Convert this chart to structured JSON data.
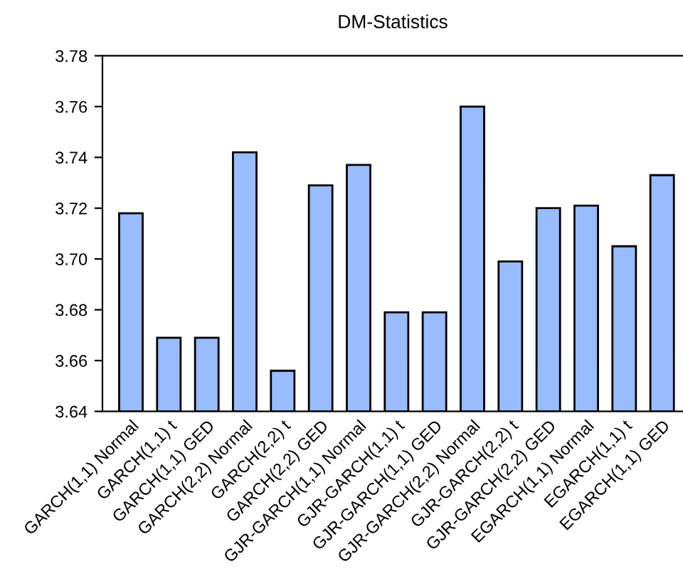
{
  "chart_data": {
    "type": "bar",
    "title": "DM-Statistics",
    "categories": [
      "GARCH(1,1) Normal",
      "GARCH(1,1) t",
      "GARCH(1,1) GED",
      "GARCH(2,2) Normal",
      "GARCH(2,2) t",
      "GARCH(2,2) GED",
      "GJR-GARCH(1,1) Normal",
      "GJR-GARCH(1,1) t",
      "GJR-GARCH(1,1) GED",
      "GJR-GARCH(2,2) Normal",
      "GJR-GARCH(2,2) t",
      "GJR-GARCH(2,2) GED",
      "EGARCH(1,1) Normal",
      "EGARCH(1,1) t",
      "EGARCH(1,1) GED"
    ],
    "values": [
      3.718,
      3.669,
      3.669,
      3.742,
      3.656,
      3.729,
      3.737,
      3.679,
      3.679,
      3.76,
      3.699,
      3.72,
      3.721,
      3.705,
      3.733
    ],
    "color": "#99bbff",
    "ylim": [
      3.64,
      3.78
    ],
    "yticks": [
      {
        "value": 3.64,
        "label": "3.64"
      },
      {
        "value": 3.66,
        "label": "3.66"
      },
      {
        "value": 3.68,
        "label": "3.68"
      },
      {
        "value": 3.7,
        "label": "3.70"
      },
      {
        "value": 3.72,
        "label": "3.72"
      },
      {
        "value": 3.74,
        "label": "3.74"
      },
      {
        "value": 3.76,
        "label": "3.76"
      },
      {
        "value": 3.78,
        "label": "3.78"
      }
    ],
    "grid": false
  }
}
